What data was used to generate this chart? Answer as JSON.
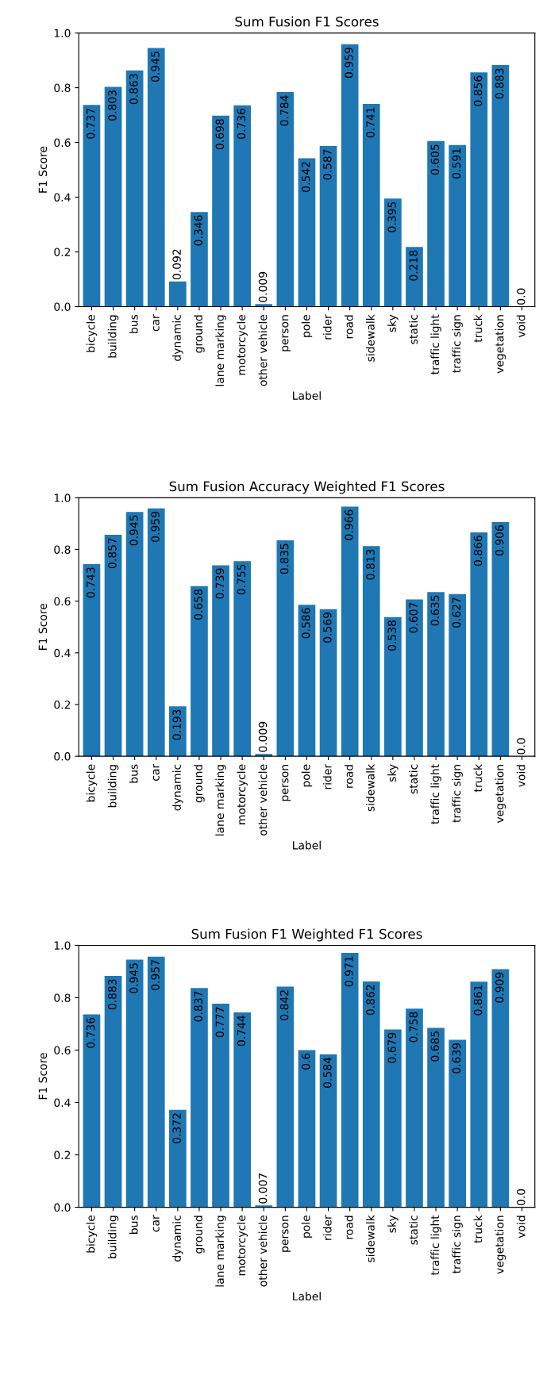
{
  "chart_data": [
    {
      "type": "bar",
      "title": "Sum Fusion F1 Scores",
      "xlabel": "Label",
      "ylabel": "F1 Score",
      "color": "#1f77b4",
      "grid": false,
      "legend": false,
      "categories": [
        "bicycle",
        "building",
        "bus",
        "car",
        "dynamic",
        "ground",
        "lane marking",
        "motorcycle",
        "other vehicle",
        "person",
        "pole",
        "rider",
        "road",
        "sidewalk",
        "sky",
        "static",
        "traffic light",
        "traffic sign",
        "truck",
        "vegetation",
        "void"
      ],
      "values": [
        0.737,
        0.803,
        0.863,
        0.945,
        0.092,
        0.346,
        0.698,
        0.736,
        0.009,
        0.784,
        0.542,
        0.587,
        0.959,
        0.741,
        0.395,
        0.218,
        0.605,
        0.591,
        0.856,
        0.883,
        0.0
      ],
      "value_labels": [
        "0.737",
        "0.803",
        "0.863",
        "0.945",
        "0.092",
        "0.346",
        "0.698",
        "0.736",
        "0.009",
        "0.784",
        "0.542",
        "0.587",
        "0.959",
        "0.741",
        "0.395",
        "0.218",
        "0.605",
        "0.591",
        "0.856",
        "0.883",
        "0.0"
      ],
      "ylim": [
        0,
        1
      ],
      "yticks": [
        {
          "value": 0,
          "label": "0.0"
        },
        {
          "value": 0.2,
          "label": "0.2"
        },
        {
          "value": 0.4,
          "label": "0.4"
        },
        {
          "value": 0.6,
          "label": "0.6"
        },
        {
          "value": 0.8,
          "label": "0.8"
        },
        {
          "value": 1,
          "label": "1.0"
        }
      ]
    },
    {
      "type": "bar",
      "title": "Sum Fusion Accuracy Weighted F1 Scores",
      "xlabel": "Label",
      "ylabel": "F1 Score",
      "color": "#1f77b4",
      "grid": false,
      "legend": false,
      "categories": [
        "bicycle",
        "building",
        "bus",
        "car",
        "dynamic",
        "ground",
        "lane marking",
        "motorcycle",
        "other vehicle",
        "person",
        "pole",
        "rider",
        "road",
        "sidewalk",
        "sky",
        "static",
        "traffic light",
        "traffic sign",
        "truck",
        "vegetation",
        "void"
      ],
      "values": [
        0.743,
        0.857,
        0.945,
        0.959,
        0.193,
        0.658,
        0.739,
        0.755,
        0.009,
        0.835,
        0.586,
        0.569,
        0.966,
        0.813,
        0.538,
        0.607,
        0.635,
        0.627,
        0.866,
        0.906,
        0.0
      ],
      "value_labels": [
        "0.743",
        "0.857",
        "0.945",
        "0.959",
        "0.193",
        "0.658",
        "0.739",
        "0.755",
        "0.009",
        "0.835",
        "0.586",
        "0.569",
        "0.966",
        "0.813",
        "0.538",
        "0.607",
        "0.635",
        "0.627",
        "0.866",
        "0.906",
        "0.0"
      ],
      "ylim": [
        0,
        1
      ],
      "yticks": [
        {
          "value": 0,
          "label": "0.0"
        },
        {
          "value": 0.2,
          "label": "0.2"
        },
        {
          "value": 0.4,
          "label": "0.4"
        },
        {
          "value": 0.6,
          "label": "0.6"
        },
        {
          "value": 0.8,
          "label": "0.8"
        },
        {
          "value": 1,
          "label": "1.0"
        }
      ]
    },
    {
      "type": "bar",
      "title": "Sum Fusion F1 Weighted F1 Scores",
      "xlabel": "Label",
      "ylabel": "F1 Score",
      "color": "#1f77b4",
      "grid": false,
      "legend": false,
      "categories": [
        "bicycle",
        "building",
        "bus",
        "car",
        "dynamic",
        "ground",
        "lane marking",
        "motorcycle",
        "other vehicle",
        "person",
        "pole",
        "rider",
        "road",
        "sidewalk",
        "sky",
        "static",
        "traffic light",
        "traffic sign",
        "truck",
        "vegetation",
        "void"
      ],
      "values": [
        0.736,
        0.883,
        0.945,
        0.957,
        0.372,
        0.837,
        0.777,
        0.744,
        0.007,
        0.842,
        0.6,
        0.584,
        0.971,
        0.862,
        0.679,
        0.758,
        0.685,
        0.639,
        0.861,
        0.909,
        0.0
      ],
      "value_labels": [
        "0.736",
        "0.883",
        "0.945",
        "0.957",
        "0.372",
        "0.837",
        "0.777",
        "0.744",
        "0.007",
        "0.842",
        "0.6",
        "0.584",
        "0.971",
        "0.862",
        "0.679",
        "0.758",
        "0.685",
        "0.639",
        "0.861",
        "0.909",
        "0.0"
      ],
      "ylim": [
        0,
        1
      ],
      "yticks": [
        {
          "value": 0,
          "label": "0.0"
        },
        {
          "value": 0.2,
          "label": "0.2"
        },
        {
          "value": 0.4,
          "label": "0.4"
        },
        {
          "value": 0.6,
          "label": "0.6"
        },
        {
          "value": 0.8,
          "label": "0.8"
        },
        {
          "value": 1,
          "label": "1.0"
        }
      ]
    }
  ]
}
